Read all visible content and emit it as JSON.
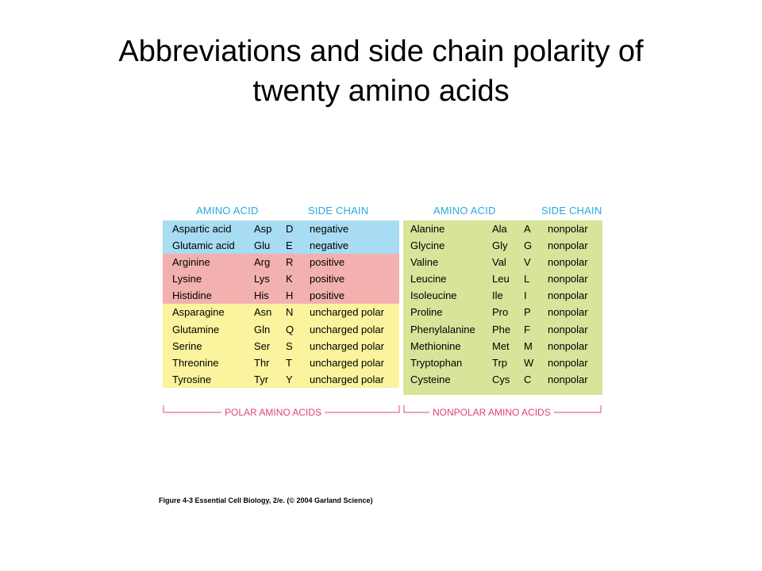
{
  "title": {
    "line1": "Abbreviations and side chain polarity of",
    "line2": "twenty amino acids"
  },
  "table": {
    "left_headers": {
      "amino_acid": "AMINO ACID",
      "side_chain": "SIDE CHAIN"
    },
    "right_headers": {
      "amino_acid": "AMINO ACID",
      "side_chain": "SIDE CHAIN"
    },
    "left_rows": [
      {
        "name": "Aspartic acid",
        "three": "Asp",
        "one": "D",
        "side": "negative"
      },
      {
        "name": "Glutamic acid",
        "three": "Glu",
        "one": "E",
        "side": "negative"
      },
      {
        "name": "Arginine",
        "three": "Arg",
        "one": "R",
        "side": "positive"
      },
      {
        "name": "Lysine",
        "three": "Lys",
        "one": "K",
        "side": "positive"
      },
      {
        "name": "Histidine",
        "three": "His",
        "one": "H",
        "side": "positive"
      },
      {
        "name": "Asparagine",
        "three": "Asn",
        "one": "N",
        "side": "uncharged polar"
      },
      {
        "name": "Glutamine",
        "three": "Gln",
        "one": "Q",
        "side": "uncharged polar"
      },
      {
        "name": "Serine",
        "three": "Ser",
        "one": "S",
        "side": "uncharged polar"
      },
      {
        "name": "Threonine",
        "three": "Thr",
        "one": "T",
        "side": "uncharged polar"
      },
      {
        "name": "Tyrosine",
        "three": "Tyr",
        "one": "Y",
        "side": "uncharged polar"
      }
    ],
    "right_rows": [
      {
        "name": "Alanine",
        "three": "Ala",
        "one": "A",
        "side": "nonpolar"
      },
      {
        "name": "Glycine",
        "three": "Gly",
        "one": "G",
        "side": "nonpolar"
      },
      {
        "name": "Valine",
        "three": "Val",
        "one": "V",
        "side": "nonpolar"
      },
      {
        "name": "Leucine",
        "three": "Leu",
        "one": "L",
        "side": "nonpolar"
      },
      {
        "name": "Isoleucine",
        "three": "Ile",
        "one": "I",
        "side": "nonpolar"
      },
      {
        "name": "Proline",
        "three": "Pro",
        "one": "P",
        "side": "nonpolar"
      },
      {
        "name": "Phenylalanine",
        "three": "Phe",
        "one": "F",
        "side": "nonpolar"
      },
      {
        "name": "Methionine",
        "three": "Met",
        "one": "M",
        "side": "nonpolar"
      },
      {
        "name": "Tryptophan",
        "three": "Trp",
        "one": "W",
        "side": "nonpolar"
      },
      {
        "name": "Cysteine",
        "three": "Cys",
        "one": "C",
        "side": "nonpolar"
      }
    ],
    "polar_label": "POLAR AMINO ACIDS",
    "nonpolar_label": "NONPOLAR AMINO ACIDS",
    "colors": {
      "header": "#2aa8e0",
      "negative": "#a7dcf2",
      "positive": "#f2b1ae",
      "uncharged": "#fbf39d",
      "nonpolar": "#d6e59a",
      "bracket": "#e0447a"
    }
  },
  "caption": "Figure 4-3  Essential Cell Biology, 2/e. (© 2004 Garland Science)"
}
